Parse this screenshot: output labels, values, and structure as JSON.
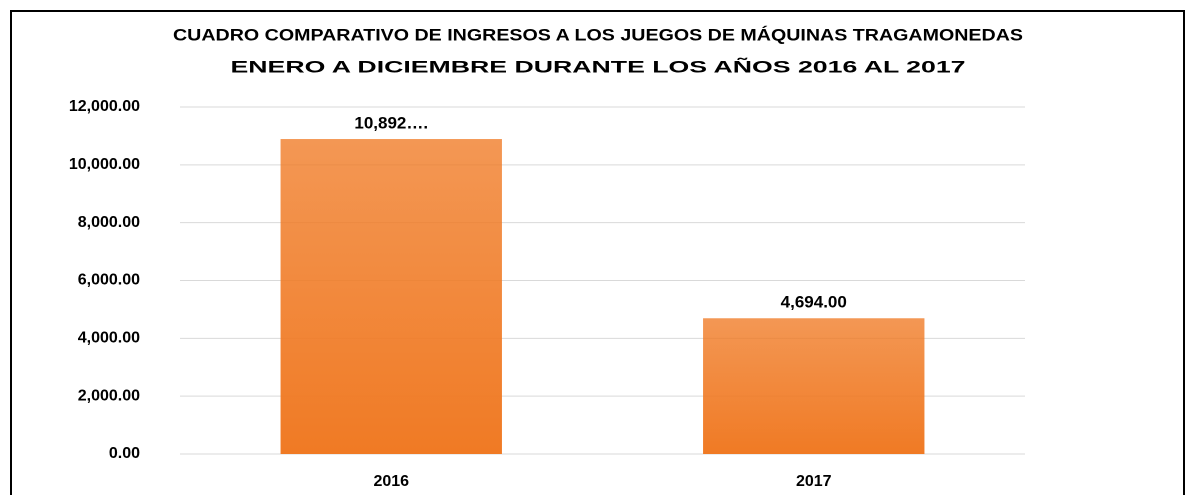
{
  "chart_data": {
    "type": "bar",
    "title": "CUADRO COMPARATIVO DE INGRESOS A LOS JUEGOS DE MÁQUINAS TRAGAMONEDAS",
    "subtitle": "ENERO A DICIEMBRE  DURANTE LOS AÑOS 2016  AL  2017",
    "categories": [
      "2016",
      "2017"
    ],
    "values": [
      10892,
      4694
    ],
    "value_labels": [
      "10,892….",
      "4,694.00"
    ],
    "color": "#f07a24",
    "ylim": [
      0,
      12000
    ],
    "yticks": [
      {
        "value": 0,
        "label": "0.00"
      },
      {
        "value": 2000,
        "label": "2,000.00"
      },
      {
        "value": 4000,
        "label": "4,000.00"
      },
      {
        "value": 6000,
        "label": "6,000.00"
      },
      {
        "value": 8000,
        "label": "8,000.00"
      },
      {
        "value": 10000,
        "label": "10,000.00"
      },
      {
        "value": 12000,
        "label": "12,000.00"
      }
    ],
    "grid": true
  }
}
